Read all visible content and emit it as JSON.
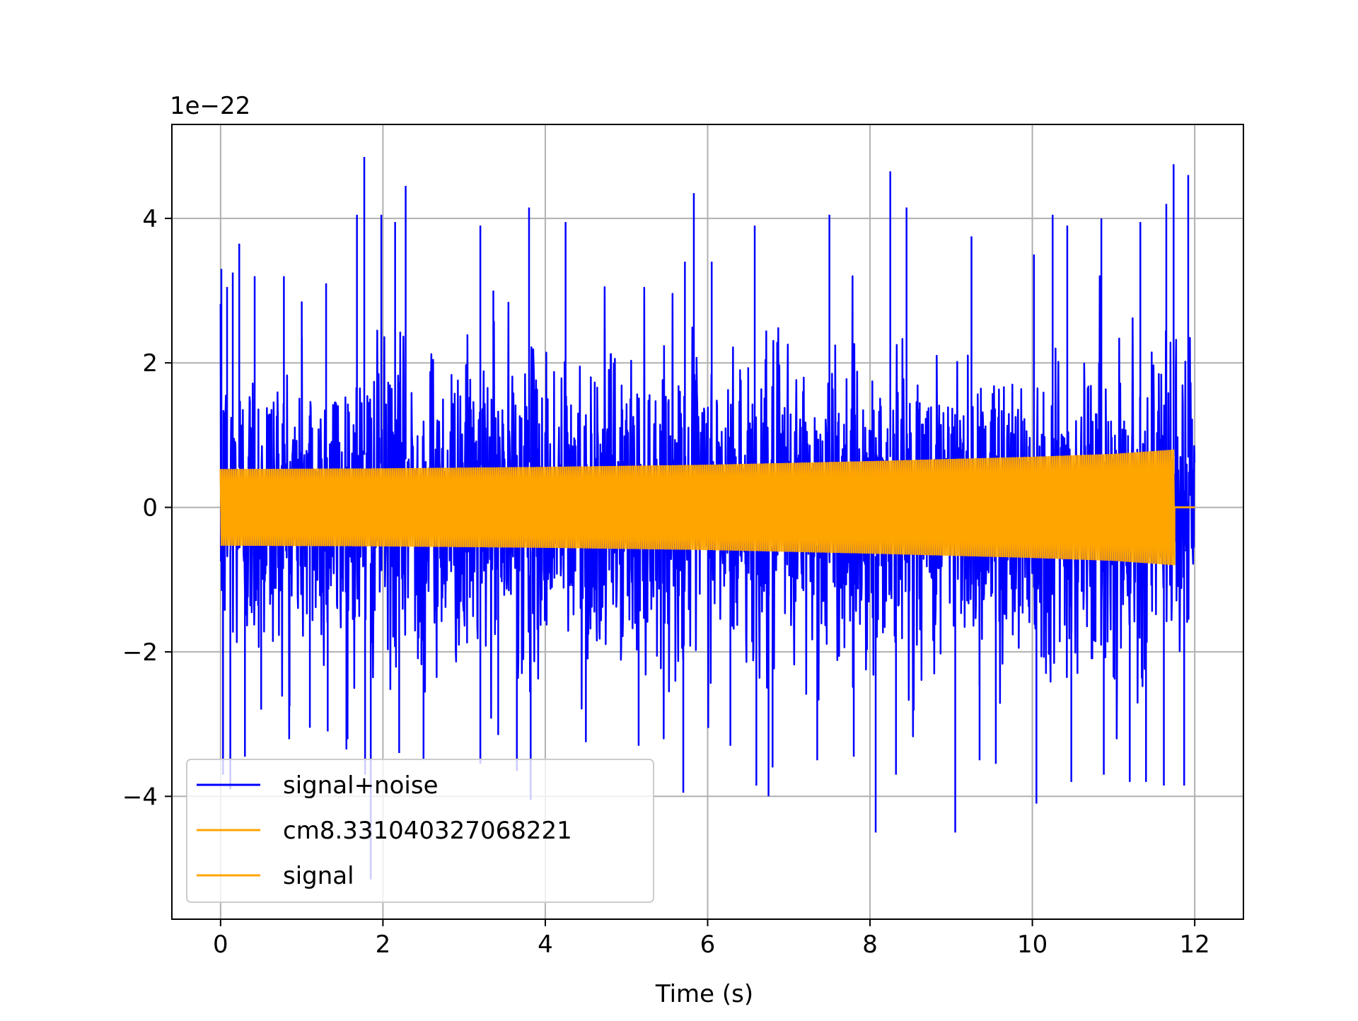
{
  "chart_data": {
    "type": "line",
    "title": "",
    "xlabel": "Time (s)",
    "ylabel": "",
    "y_offset_label": "1e−22",
    "xlim": [
      -0.6,
      12.6
    ],
    "ylim": [
      -5.7,
      5.3
    ],
    "x_ticks": [
      0,
      2,
      4,
      6,
      8,
      10,
      12
    ],
    "x_tick_labels": [
      "0",
      "2",
      "4",
      "6",
      "8",
      "10",
      "12"
    ],
    "y_ticks": [
      -4,
      -2,
      0,
      2,
      4
    ],
    "y_tick_labels": [
      "−4",
      "−2",
      "0",
      "2",
      "4"
    ],
    "grid": true,
    "legend_position": "lower-left",
    "series": [
      {
        "name": "signal+noise",
        "color": "#0000ff",
        "x_range": [
          0,
          12
        ],
        "typical_amplitude": 1.3,
        "peaks": [
          [
            0.01,
            3.3
          ],
          [
            0.08,
            3.05
          ],
          [
            0.15,
            3.25
          ],
          [
            0.23,
            3.65
          ],
          [
            0.42,
            3.2
          ],
          [
            0.78,
            3.2
          ],
          [
            1.0,
            2.85
          ],
          [
            1.3,
            3.1
          ],
          [
            1.68,
            4.05
          ],
          [
            1.77,
            4.85
          ],
          [
            1.98,
            4.05
          ],
          [
            2.15,
            3.95
          ],
          [
            2.28,
            4.45
          ],
          [
            3.2,
            3.9
          ],
          [
            3.36,
            3.0
          ],
          [
            3.8,
            4.15
          ],
          [
            4.25,
            3.95
          ],
          [
            5.72,
            3.4
          ],
          [
            5.83,
            4.35
          ],
          [
            6.05,
            3.4
          ],
          [
            6.58,
            3.9
          ],
          [
            7.5,
            4.05
          ],
          [
            8.25,
            4.65
          ],
          [
            8.45,
            4.15
          ],
          [
            9.25,
            3.75
          ],
          [
            10.02,
            3.5
          ],
          [
            10.25,
            4.05
          ],
          [
            10.43,
            3.9
          ],
          [
            10.85,
            4.0
          ],
          [
            11.33,
            3.95
          ],
          [
            11.65,
            4.2
          ],
          [
            11.74,
            4.75
          ],
          [
            11.92,
            4.6
          ]
        ],
        "troughs": [
          [
            0.03,
            -3.7
          ],
          [
            0.12,
            -3.9
          ],
          [
            0.3,
            -3.45
          ],
          [
            0.5,
            -2.8
          ],
          [
            0.85,
            -2.75
          ],
          [
            1.1,
            -3.05
          ],
          [
            1.32,
            -3.1
          ],
          [
            1.55,
            -3.35
          ],
          [
            1.78,
            -3.7
          ],
          [
            1.85,
            -5.15
          ],
          [
            2.2,
            -3.4
          ],
          [
            2.5,
            -3.5
          ],
          [
            3.2,
            -3.55
          ],
          [
            3.42,
            -3.15
          ],
          [
            3.65,
            -3.65
          ],
          [
            3.82,
            -4.05
          ],
          [
            4.5,
            -3.25
          ],
          [
            5.15,
            -3.3
          ],
          [
            5.7,
            -3.95
          ],
          [
            6.28,
            -3.3
          ],
          [
            6.6,
            -3.85
          ],
          [
            6.8,
            -3.6
          ],
          [
            6.75,
            -4.0
          ],
          [
            7.35,
            -3.5
          ],
          [
            7.8,
            -3.45
          ],
          [
            8.07,
            -4.5
          ],
          [
            8.32,
            -3.7
          ],
          [
            9.05,
            -4.5
          ],
          [
            9.35,
            -3.5
          ],
          [
            9.55,
            -3.55
          ],
          [
            10.05,
            -4.1
          ],
          [
            10.48,
            -3.8
          ],
          [
            10.88,
            -3.7
          ],
          [
            11.2,
            -3.8
          ],
          [
            11.4,
            -3.8
          ],
          [
            11.62,
            -3.85
          ],
          [
            11.87,
            -3.85
          ]
        ]
      },
      {
        "name": "cm8.331040327068221",
        "color": "#ffa500",
        "x_range": [
          0,
          11.75
        ],
        "envelope": [
          [
            0,
            0.53
          ],
          [
            2,
            0.54
          ],
          [
            4,
            0.56
          ],
          [
            6,
            0.59
          ],
          [
            8,
            0.64
          ],
          [
            10,
            0.7
          ],
          [
            11,
            0.74
          ],
          [
            11.75,
            0.8
          ]
        ],
        "after_end": 0
      },
      {
        "name": "signal",
        "color": "#ffa500",
        "x_range": [
          0,
          11.75
        ],
        "envelope": [
          [
            0,
            0.53
          ],
          [
            2,
            0.54
          ],
          [
            4,
            0.56
          ],
          [
            6,
            0.59
          ],
          [
            8,
            0.64
          ],
          [
            10,
            0.7
          ],
          [
            11,
            0.74
          ],
          [
            11.75,
            0.8
          ]
        ],
        "after_end": 0
      }
    ]
  }
}
